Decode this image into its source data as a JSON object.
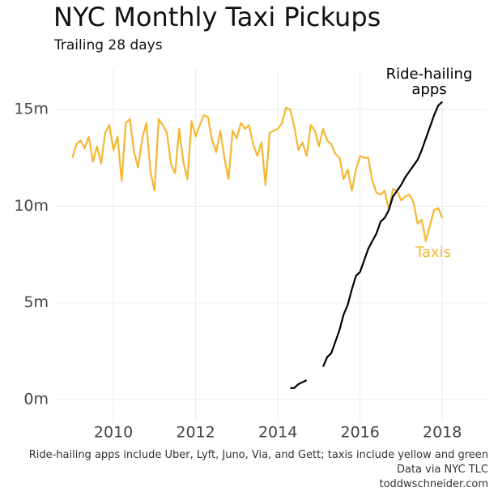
{
  "chart_data": {
    "type": "line",
    "title": "NYC Monthly Taxi Pickups",
    "subtitle": "Trailing 28 days",
    "caption": [
      "Ride-hailing apps include Uber, Lyft, Juno, Via, and Gett; taxis include yellow and green",
      "Data via NYC TLC",
      "toddwschneider.com"
    ],
    "x": [
      2009.0,
      2009.1,
      2009.2,
      2009.3,
      2009.4,
      2009.5,
      2009.6,
      2009.7,
      2009.8,
      2009.9,
      2010.0,
      2010.1,
      2010.2,
      2010.3,
      2010.4,
      2010.5,
      2010.6,
      2010.7,
      2010.8,
      2010.9,
      2011.0,
      2011.1,
      2011.2,
      2011.3,
      2011.4,
      2011.5,
      2011.6,
      2011.7,
      2011.8,
      2011.9,
      2012.0,
      2012.1,
      2012.2,
      2012.3,
      2012.4,
      2012.5,
      2012.6,
      2012.7,
      2012.8,
      2012.9,
      2013.0,
      2013.1,
      2013.2,
      2013.3,
      2013.4,
      2013.5,
      2013.6,
      2013.7,
      2013.8,
      2013.9,
      2014.0,
      2014.1,
      2014.2,
      2014.3,
      2014.4,
      2014.5,
      2014.6,
      2014.7,
      2014.8,
      2014.9,
      2015.0,
      2015.1,
      2015.2,
      2015.3,
      2015.4,
      2015.5,
      2015.6,
      2015.7,
      2015.8,
      2015.9,
      2016.0,
      2016.1,
      2016.2,
      2016.3,
      2016.4,
      2016.5,
      2016.6,
      2016.7,
      2016.8,
      2016.9,
      2017.0,
      2017.1,
      2017.2,
      2017.3,
      2017.4,
      2017.5,
      2017.6,
      2017.7,
      2017.8,
      2017.9,
      2018.0
    ],
    "series": [
      {
        "name": "Taxis",
        "color": "#f5b731",
        "values": [
          12.5,
          13.2,
          13.4,
          13.0,
          13.6,
          12.3,
          13.1,
          12.2,
          13.8,
          14.2,
          12.9,
          13.6,
          11.3,
          14.3,
          14.5,
          12.8,
          12.0,
          13.5,
          14.3,
          11.8,
          10.8,
          14.5,
          14.2,
          13.8,
          12.2,
          11.7,
          14.0,
          12.3,
          11.4,
          14.4,
          13.6,
          14.2,
          14.7,
          14.6,
          13.4,
          12.8,
          13.9,
          12.5,
          11.4,
          13.9,
          13.5,
          14.3,
          14.0,
          14.2,
          13.2,
          12.6,
          13.3,
          11.1,
          13.8,
          13.9,
          14.0,
          14.3,
          15.1,
          15.0,
          14.1,
          12.9,
          13.3,
          12.6,
          14.2,
          13.9,
          13.1,
          14.0,
          13.4,
          13.2,
          12.7,
          12.5,
          11.4,
          11.9,
          10.8,
          11.9,
          12.6,
          12.5,
          12.5,
          11.3,
          10.7,
          10.6,
          10.8,
          9.8,
          10.9,
          10.8,
          10.3,
          10.5,
          10.6,
          10.2,
          9.1,
          9.3,
          8.2,
          9.0,
          9.8,
          9.9,
          9.4
        ]
      },
      {
        "name": "Ride-hailing apps",
        "color": "#000000",
        "values": [
          null,
          null,
          null,
          null,
          null,
          null,
          null,
          null,
          null,
          null,
          null,
          null,
          null,
          null,
          null,
          null,
          null,
          null,
          null,
          null,
          null,
          null,
          null,
          null,
          null,
          null,
          null,
          null,
          null,
          null,
          null,
          null,
          null,
          null,
          null,
          null,
          null,
          null,
          null,
          null,
          null,
          null,
          null,
          null,
          null,
          null,
          null,
          null,
          null,
          null,
          null,
          null,
          null,
          0.6,
          0.6,
          0.8,
          0.9,
          1.0,
          null,
          null,
          null,
          1.7,
          2.2,
          2.4,
          3.0,
          3.6,
          4.4,
          4.9,
          5.7,
          6.4,
          6.6,
          7.2,
          7.8,
          8.2,
          8.6,
          9.2,
          9.4,
          9.8,
          10.5,
          10.8,
          11.1,
          11.5,
          11.8,
          12.1,
          12.4,
          12.9,
          13.5,
          14.1,
          14.7,
          15.2,
          15.4
        ]
      }
    ],
    "xlim": [
      2008.58,
      2019.06
    ],
    "xticks": [
      2010,
      2012,
      2014,
      2016,
      2018
    ],
    "ylim": [
      -1.13,
      17.1
    ],
    "yticks": [
      {
        "value": 0,
        "label": "0m"
      },
      {
        "value": 5,
        "label": "5m"
      },
      {
        "value": 10,
        "label": "10m"
      },
      {
        "value": 15,
        "label": "15m"
      }
    ],
    "grid": true
  }
}
